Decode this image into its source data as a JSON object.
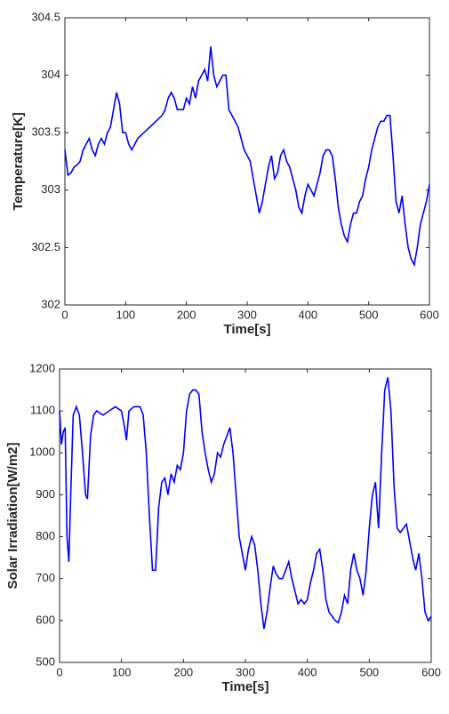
{
  "chart_data": [
    {
      "type": "line",
      "xlabel": "Time[s]",
      "ylabel": "Temperature[K]",
      "xlim": [
        0,
        600
      ],
      "xticks": [
        0,
        100,
        200,
        300,
        400,
        500,
        600
      ],
      "ylim": [
        302,
        304.5
      ],
      "yticks": [
        302,
        302.5,
        303,
        303.5,
        304,
        304.5
      ],
      "color": "#0000ff",
      "x": [
        0,
        5,
        10,
        15,
        20,
        25,
        30,
        35,
        40,
        45,
        50,
        55,
        60,
        65,
        70,
        75,
        80,
        85,
        90,
        95,
        100,
        105,
        110,
        115,
        120,
        130,
        140,
        150,
        160,
        165,
        170,
        175,
        180,
        185,
        190,
        195,
        200,
        205,
        210,
        215,
        220,
        225,
        230,
        235,
        240,
        245,
        250,
        255,
        260,
        265,
        270,
        275,
        280,
        285,
        290,
        295,
        300,
        305,
        310,
        315,
        320,
        325,
        330,
        335,
        340,
        345,
        350,
        355,
        360,
        365,
        370,
        375,
        380,
        385,
        390,
        395,
        400,
        405,
        410,
        415,
        420,
        425,
        430,
        435,
        440,
        445,
        450,
        455,
        460,
        465,
        470,
        475,
        480,
        485,
        490,
        495,
        500,
        505,
        510,
        515,
        520,
        525,
        530,
        535,
        540,
        545,
        550,
        555,
        560,
        565,
        570,
        575,
        580,
        585,
        590,
        595,
        600
      ],
      "values": [
        303.35,
        303.13,
        303.15,
        303.2,
        303.22,
        303.25,
        303.35,
        303.4,
        303.45,
        303.35,
        303.3,
        303.4,
        303.45,
        303.4,
        303.5,
        303.55,
        303.7,
        303.85,
        303.75,
        303.5,
        303.5,
        303.4,
        303.35,
        303.4,
        303.45,
        303.5,
        303.55,
        303.6,
        303.65,
        303.7,
        303.8,
        303.85,
        303.8,
        303.7,
        303.7,
        303.7,
        303.8,
        303.75,
        303.9,
        303.8,
        303.95,
        304.0,
        304.05,
        303.95,
        304.25,
        304.0,
        303.9,
        303.95,
        304.0,
        304.0,
        303.7,
        303.65,
        303.6,
        303.55,
        303.45,
        303.35,
        303.3,
        303.25,
        303.1,
        302.95,
        302.8,
        302.9,
        303.05,
        303.2,
        303.3,
        303.1,
        303.15,
        303.3,
        303.35,
        303.25,
        303.2,
        303.1,
        303.0,
        302.85,
        302.8,
        302.95,
        303.05,
        303.0,
        302.95,
        303.05,
        303.15,
        303.3,
        303.35,
        303.35,
        303.3,
        303.1,
        302.85,
        302.7,
        302.6,
        302.55,
        302.7,
        302.8,
        302.8,
        302.9,
        302.95,
        303.1,
        303.2,
        303.35,
        303.45,
        303.55,
        303.6,
        303.6,
        303.65,
        303.65,
        303.3,
        302.9,
        302.8,
        302.95,
        302.7,
        302.5,
        302.4,
        302.35,
        302.5,
        302.7,
        302.8,
        302.9,
        303.05
      ]
    },
    {
      "type": "line",
      "xlabel": "Time[s]",
      "ylabel": "Solar Irradiation[W/m2]",
      "xlim": [
        0,
        600
      ],
      "xticks": [
        0,
        100,
        200,
        300,
        400,
        500,
        600
      ],
      "ylim": [
        500,
        1200
      ],
      "yticks": [
        500,
        600,
        700,
        800,
        900,
        1000,
        1100,
        1200
      ],
      "color": "#0000ff",
      "x": [
        0,
        3,
        6,
        9,
        12,
        15,
        18,
        22,
        27,
        32,
        37,
        42,
        45,
        50,
        55,
        60,
        70,
        80,
        90,
        100,
        105,
        108,
        112,
        120,
        130,
        135,
        140,
        145,
        150,
        155,
        160,
        165,
        170,
        175,
        180,
        185,
        190,
        195,
        200,
        205,
        210,
        215,
        220,
        225,
        230,
        235,
        240,
        245,
        250,
        255,
        260,
        265,
        270,
        275,
        280,
        285,
        290,
        295,
        300,
        305,
        310,
        315,
        320,
        325,
        330,
        335,
        340,
        345,
        350,
        355,
        360,
        365,
        370,
        375,
        380,
        385,
        390,
        395,
        400,
        405,
        410,
        415,
        420,
        425,
        430,
        435,
        440,
        445,
        450,
        455,
        460,
        465,
        470,
        475,
        480,
        485,
        490,
        495,
        500,
        505,
        510,
        515,
        520,
        525,
        530,
        535,
        540,
        545,
        550,
        555,
        560,
        565,
        570,
        575,
        580,
        585,
        590,
        595,
        600
      ],
      "values": [
        1100,
        1020,
        1050,
        1060,
        800,
        740,
        900,
        1090,
        1110,
        1090,
        1000,
        900,
        890,
        1040,
        1090,
        1100,
        1090,
        1100,
        1110,
        1100,
        1060,
        1030,
        1100,
        1110,
        1110,
        1090,
        1000,
        850,
        720,
        720,
        870,
        930,
        940,
        900,
        950,
        930,
        970,
        960,
        1000,
        1100,
        1140,
        1150,
        1150,
        1140,
        1050,
        1000,
        960,
        930,
        950,
        1000,
        990,
        1020,
        1040,
        1060,
        1000,
        900,
        800,
        760,
        720,
        770,
        800,
        780,
        720,
        640,
        580,
        620,
        680,
        730,
        710,
        700,
        700,
        720,
        740,
        700,
        670,
        640,
        650,
        640,
        650,
        690,
        720,
        760,
        770,
        720,
        650,
        620,
        610,
        600,
        595,
        620,
        660,
        640,
        720,
        760,
        720,
        700,
        660,
        720,
        820,
        900,
        930,
        820,
        1000,
        1150,
        1180,
        1100,
        920,
        820,
        810,
        820,
        830,
        790,
        750,
        720,
        760,
        700,
        620,
        600,
        610
      ]
    }
  ]
}
